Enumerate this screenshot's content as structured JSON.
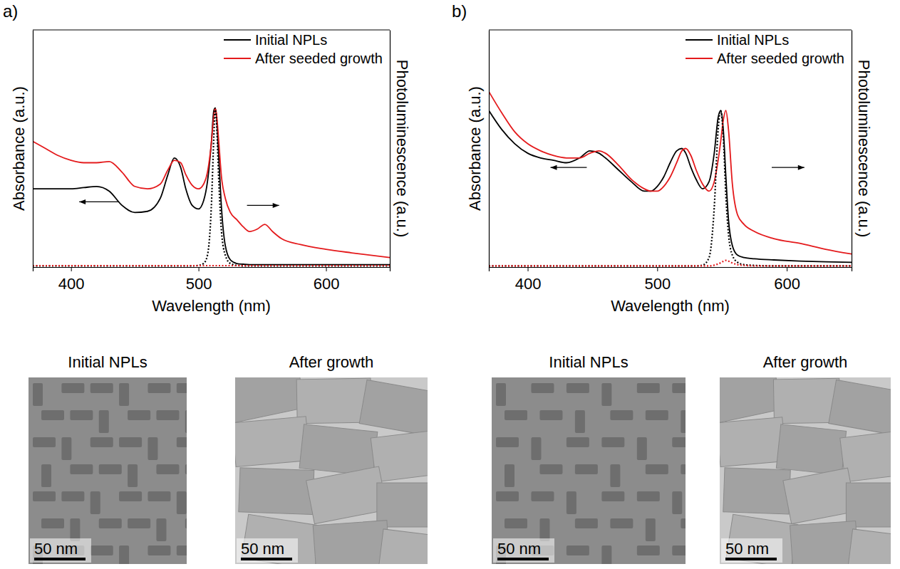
{
  "chart_data": [
    {
      "type": "line",
      "panel": "a)",
      "x_label": "Wavelength (nm)",
      "y_label": "Absorbance (a.u.)",
      "y2_label": "Photoluminescence (a.u.)",
      "x": [
        370,
        380,
        390,
        400,
        410,
        420,
        430,
        440,
        450,
        460,
        470,
        476,
        481,
        486,
        490,
        495,
        500,
        504,
        507,
        510,
        512,
        513,
        514,
        516,
        518,
        521,
        525,
        530,
        535,
        540,
        546,
        552,
        558,
        565,
        580,
        600,
        620,
        650
      ],
      "xlim": [
        370,
        650
      ],
      "xticks": [
        400,
        500,
        600
      ],
      "ylim": [
        0,
        1
      ],
      "y2lim": [
        0,
        1
      ],
      "tick_labels": "x",
      "grid": false,
      "legend": "upper right",
      "series": [
        {
          "name": "Initial NPLs",
          "color": "#000000",
          "line_style": "solid",
          "values": [
            0.33,
            0.33,
            0.33,
            0.33,
            0.335,
            0.34,
            0.32,
            0.26,
            0.23,
            0.235,
            0.29,
            0.39,
            0.46,
            0.42,
            0.33,
            0.26,
            0.245,
            0.28,
            0.36,
            0.52,
            0.66,
            0.67,
            0.64,
            0.45,
            0.25,
            0.09,
            0.03,
            0.015,
            0.012,
            0.01,
            0.01,
            0.01,
            0.01,
            0.01,
            0.01,
            0.01,
            0.01,
            0.01
          ]
        },
        {
          "name": "After seeded growth",
          "color": "#e41a1c",
          "line_style": "solid",
          "values": [
            0.53,
            0.5,
            0.47,
            0.45,
            0.44,
            0.44,
            0.445,
            0.4,
            0.34,
            0.33,
            0.35,
            0.41,
            0.45,
            0.44,
            0.39,
            0.345,
            0.33,
            0.35,
            0.4,
            0.52,
            0.64,
            0.67,
            0.65,
            0.52,
            0.38,
            0.29,
            0.23,
            0.2,
            0.17,
            0.15,
            0.16,
            0.18,
            0.15,
            0.12,
            0.095,
            0.075,
            0.06,
            0.04
          ]
        },
        {
          "color": "#000000",
          "line_style": "dotted",
          "axis": "y2",
          "values": [
            0.005,
            0.005,
            0.005,
            0.005,
            0.005,
            0.005,
            0.005,
            0.005,
            0.005,
            0.005,
            0.005,
            0.005,
            0.005,
            0.005,
            0.005,
            0.005,
            0.007,
            0.015,
            0.05,
            0.25,
            0.55,
            0.67,
            0.62,
            0.35,
            0.15,
            0.05,
            0.015,
            0.007,
            0.005,
            0.005,
            0.005,
            0.005,
            0.005,
            0.005,
            0.005,
            0.005,
            0.005,
            0.005
          ]
        },
        {
          "color": "#e41a1c",
          "line_style": "dotted",
          "axis": "y2",
          "values": [
            0.006,
            0.006,
            0.006,
            0.006,
            0.006,
            0.006,
            0.006,
            0.006,
            0.006,
            0.006,
            0.006,
            0.006,
            0.006,
            0.006,
            0.006,
            0.006,
            0.006,
            0.006,
            0.006,
            0.006,
            0.006,
            0.006,
            0.006,
            0.006,
            0.006,
            0.006,
            0.006,
            0.006,
            0.006,
            0.006,
            0.006,
            0.006,
            0.006,
            0.006,
            0.006,
            0.006,
            0.006,
            0.006
          ]
        }
      ]
    },
    {
      "type": "line",
      "panel": "b)",
      "x_label": "Wavelength (nm)",
      "y_label": "Absorbance (a.u.)",
      "y2_label": "Photoluminescence (a.u.)",
      "x": [
        370,
        380,
        390,
        400,
        410,
        420,
        430,
        440,
        448,
        455,
        460,
        470,
        480,
        490,
        495,
        500,
        505,
        510,
        515,
        519,
        522,
        526,
        530,
        535,
        540,
        544,
        547,
        549,
        551,
        553,
        555,
        558,
        562,
        567,
        575,
        590,
        610,
        630,
        650
      ],
      "xlim": [
        370,
        650
      ],
      "xticks": [
        400,
        500,
        600
      ],
      "ylim": [
        0,
        1
      ],
      "y2lim": [
        0,
        1
      ],
      "tick_labels": "x",
      "grid": false,
      "legend": "upper right",
      "series": [
        {
          "name": "Initial NPLs",
          "color": "#000000",
          "line_style": "solid",
          "values": [
            0.66,
            0.58,
            0.52,
            0.48,
            0.46,
            0.45,
            0.44,
            0.46,
            0.49,
            0.48,
            0.46,
            0.41,
            0.36,
            0.32,
            0.32,
            0.34,
            0.38,
            0.44,
            0.49,
            0.5,
            0.48,
            0.42,
            0.37,
            0.33,
            0.36,
            0.48,
            0.63,
            0.66,
            0.58,
            0.38,
            0.2,
            0.09,
            0.05,
            0.04,
            0.035,
            0.03,
            0.025,
            0.022,
            0.02
          ]
        },
        {
          "name": "After seeded growth",
          "color": "#e41a1c",
          "line_style": "solid",
          "values": [
            0.74,
            0.65,
            0.57,
            0.52,
            0.49,
            0.47,
            0.46,
            0.46,
            0.48,
            0.49,
            0.48,
            0.43,
            0.37,
            0.33,
            0.32,
            0.32,
            0.34,
            0.38,
            0.44,
            0.49,
            0.5,
            0.47,
            0.41,
            0.35,
            0.32,
            0.36,
            0.45,
            0.53,
            0.62,
            0.66,
            0.58,
            0.35,
            0.22,
            0.18,
            0.15,
            0.12,
            0.1,
            0.075,
            0.055
          ]
        },
        {
          "color": "#000000",
          "line_style": "dotted",
          "axis": "y2",
          "values": [
            0.005,
            0.005,
            0.005,
            0.005,
            0.005,
            0.005,
            0.005,
            0.005,
            0.005,
            0.005,
            0.005,
            0.005,
            0.005,
            0.005,
            0.005,
            0.005,
            0.005,
            0.005,
            0.005,
            0.005,
            0.005,
            0.005,
            0.005,
            0.008,
            0.04,
            0.25,
            0.58,
            0.66,
            0.55,
            0.3,
            0.14,
            0.05,
            0.02,
            0.01,
            0.007,
            0.005,
            0.005,
            0.005,
            0.005
          ]
        },
        {
          "color": "#e41a1c",
          "line_style": "dotted",
          "axis": "y2",
          "values": [
            0.005,
            0.005,
            0.005,
            0.005,
            0.005,
            0.005,
            0.005,
            0.005,
            0.005,
            0.005,
            0.005,
            0.005,
            0.005,
            0.005,
            0.005,
            0.005,
            0.005,
            0.005,
            0.005,
            0.005,
            0.005,
            0.005,
            0.005,
            0.005,
            0.005,
            0.008,
            0.013,
            0.018,
            0.024,
            0.028,
            0.025,
            0.017,
            0.01,
            0.007,
            0.005,
            0.005,
            0.005,
            0.005,
            0.005
          ]
        }
      ]
    }
  ],
  "images": [
    [
      {
        "label": "Initial NPLs",
        "scale_bar": "50 nm"
      },
      {
        "label": "After growth",
        "scale_bar": "50 nm"
      }
    ],
    [
      {
        "label": "Initial NPLs",
        "scale_bar": "50 nm"
      },
      {
        "label": "After growth",
        "scale_bar": "50 nm"
      }
    ]
  ]
}
